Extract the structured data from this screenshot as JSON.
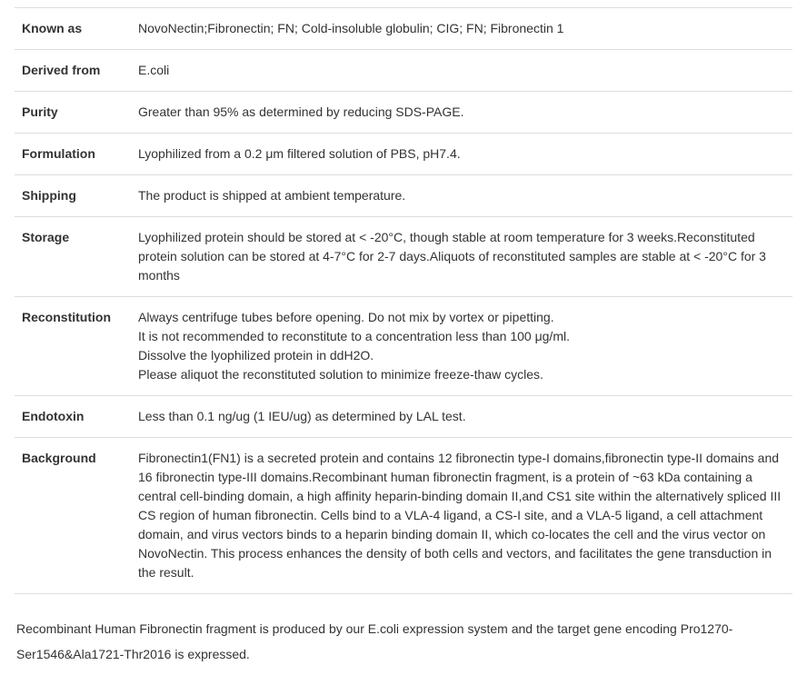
{
  "rows": {
    "known_as": {
      "label": "Known as",
      "value": "NovoNectin;Fibronectin; FN; Cold-insoluble globulin; CIG; FN; Fibronectin 1"
    },
    "derived": {
      "label": "Derived from",
      "value": "E.coli"
    },
    "purity": {
      "label": "Purity",
      "value": "Greater than 95% as determined by reducing SDS-PAGE."
    },
    "formulation": {
      "label": "Formulation",
      "value": "Lyophilized from a 0.2 μm filtered solution of PBS, pH7.4."
    },
    "shipping": {
      "label": "Shipping",
      "value": "The product is shipped at ambient temperature."
    },
    "storage": {
      "label": "Storage",
      "value": "Lyophilized protein should be stored at < -20°C, though stable at room temperature for 3 weeks.Reconstituted protein solution can be stored at 4-7°C for 2-7 days.Aliquots of reconstituted samples are stable at < -20°C for 3 months"
    },
    "reconstitution": {
      "label": "Reconstitution",
      "line1": "Always centrifuge tubes before opening. Do not mix by vortex or pipetting.",
      "line2": "It is not recommended to reconstitute to a concentration less than 100 μg/ml.",
      "line3": "Dissolve the lyophilized protein in ddH2O.",
      "line4": "Please aliquot the reconstituted solution to minimize freeze-thaw cycles."
    },
    "endotoxin": {
      "label": "Endotoxin",
      "value": "Less than 0.1 ng/ug (1 IEU/ug) as determined by LAL test."
    },
    "background": {
      "label": "Background",
      "value": "Fibronectin1(FN1) is a secreted protein and contains 12 fibronectin type-I domains,fibronectin type-II domains and 16 fibronectin type-III domains.Recombinant human fibronectin fragment, is a protein of ~63 kDa containing a central cell-binding domain, a high affinity heparin-binding domain II,and CS1 site within the alternatively spliced III CS region of human fibronectin. Cells bind to a VLA-4 ligand, a CS-I site, and a VLA-5 ligand, a cell attachment domain, and virus vectors binds to a heparin binding domain II, which co-locates the cell and the virus vector on NovoNectin. This process enhances the density of both cells and vectors, and facilitates the gene transduction in the result."
    }
  },
  "footer": "Recombinant Human Fibronectin fragment is produced by our E.coli expression system and the target gene encoding Pro1270-Ser1546&Ala1721-Thr2016 is expressed."
}
